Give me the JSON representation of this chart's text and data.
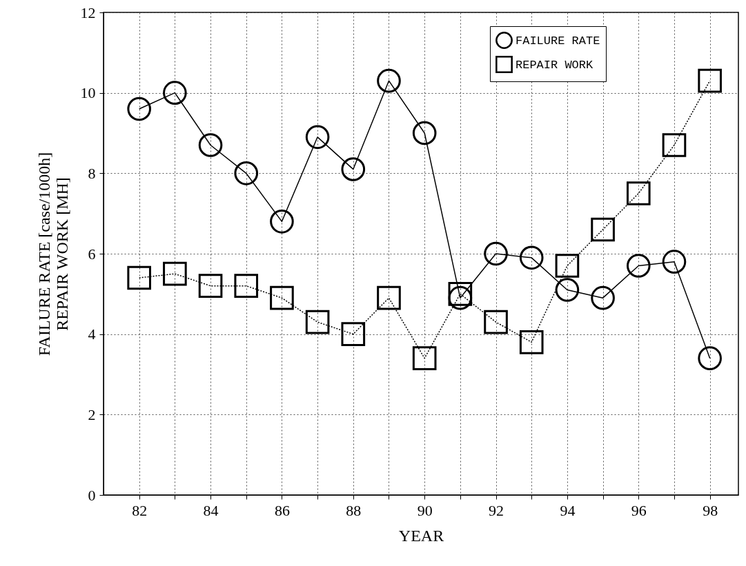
{
  "chart_data": {
    "type": "line",
    "xlabel": "YEAR",
    "ylabel": "FAILURE RATE [case/1000h]\nREPAIR WORK [MH]",
    "x": [
      82,
      83,
      84,
      85,
      86,
      87,
      88,
      89,
      90,
      91,
      92,
      93,
      94,
      95,
      96,
      97,
      98
    ],
    "series": [
      {
        "name": "FAILURE RATE",
        "color": "#000000",
        "marker": "circle",
        "line_style": "solid",
        "values": [
          9.6,
          10.0,
          8.7,
          8.0,
          6.8,
          8.9,
          8.1,
          10.3,
          9.0,
          4.9,
          6.0,
          5.9,
          5.1,
          4.9,
          5.7,
          5.8,
          3.4
        ]
      },
      {
        "name": "REPAIR WORK",
        "color": "#000000",
        "marker": "square",
        "line_style": "dotted",
        "values": [
          5.4,
          5.5,
          5.2,
          5.2,
          4.9,
          4.3,
          4.0,
          4.9,
          3.4,
          5.0,
          4.3,
          3.8,
          5.7,
          6.6,
          7.5,
          8.7,
          10.3
        ]
      }
    ],
    "xlim": [
      81,
      98.8
    ],
    "xticks": [
      82,
      {
        "value": 83,
        "label": null
      },
      84,
      {
        "value": 85,
        "label": null
      },
      86,
      {
        "value": 87,
        "label": null
      },
      88,
      {
        "value": 89,
        "label": null
      },
      90,
      {
        "value": 91,
        "label": null
      },
      92,
      {
        "value": 93,
        "label": null
      },
      94,
      {
        "value": 95,
        "label": null
      },
      96,
      {
        "value": 97,
        "label": null
      },
      98
    ],
    "ylim": [
      0,
      12
    ],
    "yticks": [
      0,
      2,
      4,
      6,
      8,
      10,
      12
    ],
    "grid": true,
    "legend": "top right"
  }
}
